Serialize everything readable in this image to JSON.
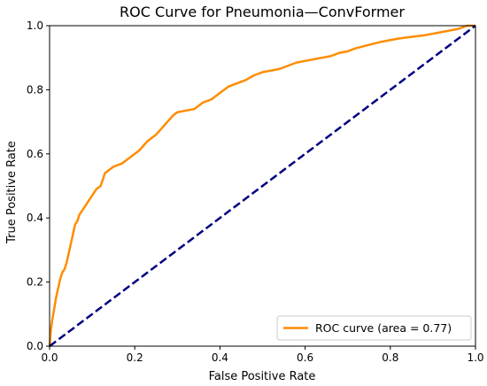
{
  "chart_data": {
    "type": "line",
    "title": "ROC Curve for Pneumonia—ConvFormer",
    "xlabel": "False Positive Rate",
    "ylabel": "True Positive Rate",
    "xlim": [
      0.0,
      1.0
    ],
    "ylim": [
      0.0,
      1.0
    ],
    "xticks": [
      "0.0",
      "0.2",
      "0.4",
      "0.6",
      "0.8",
      "1.0"
    ],
    "yticks": [
      "0.0",
      "0.2",
      "0.4",
      "0.6",
      "0.8",
      "1.0"
    ],
    "grid": false,
    "legend_position": "lower-right",
    "series": [
      {
        "name": "ROC curve (area = 0.77)",
        "color": "#ff8c00",
        "style": "solid",
        "x": [
          0.0,
          0.003,
          0.006,
          0.01,
          0.015,
          0.02,
          0.025,
          0.03,
          0.035,
          0.04,
          0.045,
          0.05,
          0.055,
          0.06,
          0.065,
          0.07,
          0.075,
          0.08,
          0.085,
          0.09,
          0.095,
          0.1,
          0.11,
          0.12,
          0.13,
          0.14,
          0.15,
          0.16,
          0.17,
          0.18,
          0.19,
          0.2,
          0.21,
          0.22,
          0.23,
          0.24,
          0.25,
          0.26,
          0.27,
          0.28,
          0.29,
          0.3,
          0.32,
          0.34,
          0.35,
          0.36,
          0.38,
          0.4,
          0.41,
          0.42,
          0.44,
          0.46,
          0.48,
          0.5,
          0.52,
          0.54,
          0.56,
          0.58,
          0.6,
          0.62,
          0.64,
          0.66,
          0.68,
          0.7,
          0.72,
          0.75,
          0.78,
          0.8,
          0.82,
          0.85,
          0.88,
          0.9,
          0.92,
          0.94,
          0.96,
          0.97,
          0.98,
          1.0
        ],
        "y": [
          0.0,
          0.05,
          0.08,
          0.11,
          0.15,
          0.18,
          0.21,
          0.23,
          0.24,
          0.26,
          0.29,
          0.32,
          0.35,
          0.38,
          0.39,
          0.41,
          0.42,
          0.43,
          0.44,
          0.45,
          0.46,
          0.47,
          0.49,
          0.5,
          0.54,
          0.55,
          0.56,
          0.565,
          0.57,
          0.58,
          0.59,
          0.6,
          0.61,
          0.625,
          0.64,
          0.65,
          0.66,
          0.675,
          0.69,
          0.705,
          0.72,
          0.73,
          0.735,
          0.74,
          0.75,
          0.76,
          0.77,
          0.79,
          0.8,
          0.81,
          0.82,
          0.83,
          0.845,
          0.855,
          0.86,
          0.865,
          0.875,
          0.885,
          0.89,
          0.895,
          0.9,
          0.905,
          0.915,
          0.92,
          0.93,
          0.94,
          0.95,
          0.955,
          0.96,
          0.965,
          0.97,
          0.975,
          0.98,
          0.985,
          0.99,
          0.995,
          1.0,
          1.0
        ]
      },
      {
        "color": "#000080",
        "style": "dashed",
        "x": [
          0.0,
          1.0
        ],
        "y": [
          0.0,
          1.0
        ]
      }
    ]
  }
}
